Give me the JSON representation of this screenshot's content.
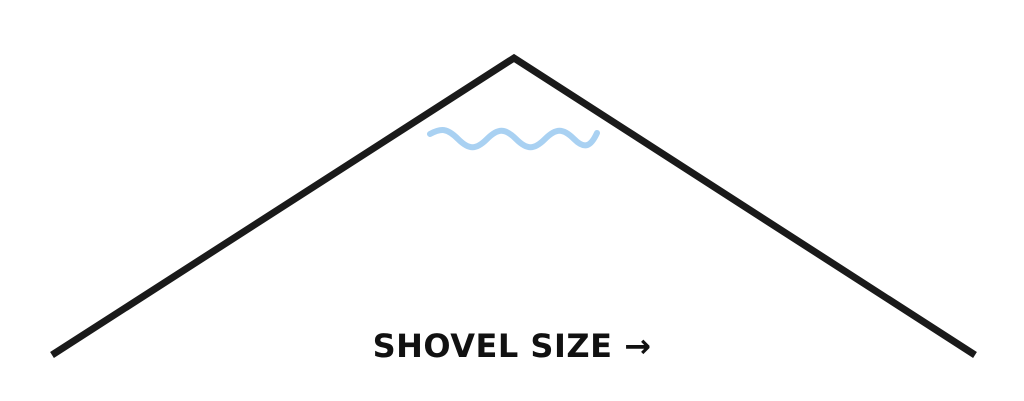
{
  "diagram": {
    "curve_color": "#1a1a1a",
    "wave_color": "#a9d1f2",
    "background_color": "#ffffff"
  },
  "labels": {
    "axis_label": "SHOVEL SIZE →"
  }
}
